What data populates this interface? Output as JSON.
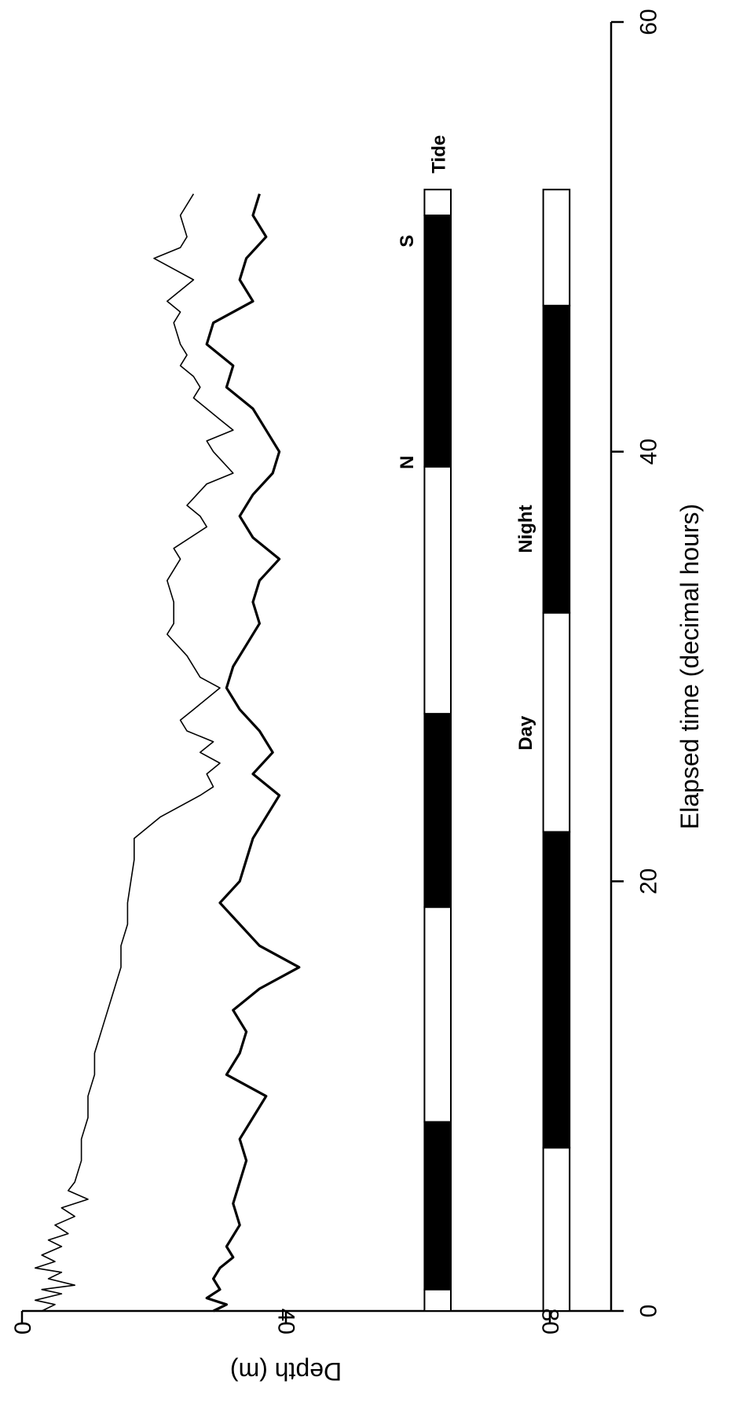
{
  "chart_data": {
    "type": "line",
    "xlabel": "Elapsed time (decimal hours)",
    "ylabel": "Depth (m)",
    "xlim": [
      0,
      60
    ],
    "ylim": [
      0,
      90
    ],
    "y_inverted": true,
    "orientation": "rotated-90-clockwise",
    "x_ticks": [
      "0",
      "20",
      "40",
      "60"
    ],
    "y_ticks": [
      "0",
      "40",
      "80"
    ],
    "series": [
      {
        "style": "thin",
        "points": [
          [
            0,
            3
          ],
          [
            0.3,
            5
          ],
          [
            0.5,
            2
          ],
          [
            0.8,
            6
          ],
          [
            1.0,
            3
          ],
          [
            1.2,
            8
          ],
          [
            1.5,
            4
          ],
          [
            1.8,
            6
          ],
          [
            2.0,
            2
          ],
          [
            2.3,
            5
          ],
          [
            2.6,
            3
          ],
          [
            3.0,
            6
          ],
          [
            3.3,
            4
          ],
          [
            3.6,
            7
          ],
          [
            4.0,
            5
          ],
          [
            4.4,
            8
          ],
          [
            4.8,
            6
          ],
          [
            5.2,
            10
          ],
          [
            5.6,
            7
          ],
          [
            6.0,
            8
          ],
          [
            7.0,
            9
          ],
          [
            8.0,
            9
          ],
          [
            9.0,
            10
          ],
          [
            10.0,
            10
          ],
          [
            11.0,
            11
          ],
          [
            12.0,
            11
          ],
          [
            13.0,
            12
          ],
          [
            14.0,
            13
          ],
          [
            15.0,
            14
          ],
          [
            16.0,
            15
          ],
          [
            17.0,
            15
          ],
          [
            18.0,
            16
          ],
          [
            19.0,
            16
          ],
          [
            20.0,
            16.5
          ],
          [
            21.0,
            17
          ],
          [
            22.0,
            17
          ],
          [
            23.0,
            21
          ],
          [
            24.0,
            27
          ],
          [
            24.4,
            29
          ],
          [
            25.0,
            28
          ],
          [
            25.5,
            30
          ],
          [
            26.0,
            27
          ],
          [
            26.5,
            29
          ],
          [
            27.0,
            25
          ],
          [
            27.5,
            24
          ],
          [
            28.0,
            26
          ],
          [
            29.0,
            30
          ],
          [
            29.5,
            27
          ],
          [
            30.5,
            25
          ],
          [
            31.5,
            22
          ],
          [
            32.0,
            23
          ],
          [
            33.0,
            23
          ],
          [
            34.0,
            22
          ],
          [
            35.0,
            24
          ],
          [
            35.5,
            23
          ],
          [
            36.5,
            28
          ],
          [
            37.0,
            27
          ],
          [
            37.5,
            25
          ],
          [
            38.5,
            28
          ],
          [
            39.0,
            32
          ],
          [
            40.0,
            29
          ],
          [
            40.5,
            28
          ],
          [
            41.0,
            32
          ],
          [
            41.5,
            30
          ],
          [
            42.0,
            28
          ],
          [
            42.5,
            26
          ],
          [
            43.0,
            27
          ],
          [
            43.5,
            26
          ],
          [
            44.0,
            24
          ],
          [
            44.5,
            25
          ],
          [
            45.0,
            24
          ],
          [
            46.0,
            23
          ],
          [
            46.5,
            24
          ],
          [
            47.0,
            22
          ],
          [
            48.0,
            26
          ],
          [
            48.5,
            23
          ],
          [
            49.0,
            20
          ],
          [
            49.5,
            24
          ],
          [
            50.0,
            25
          ],
          [
            51.0,
            24
          ],
          [
            52.0,
            26
          ]
        ]
      },
      {
        "style": "thick",
        "points": [
          [
            0,
            29
          ],
          [
            0.3,
            31
          ],
          [
            0.6,
            28
          ],
          [
            1.0,
            30
          ],
          [
            1.5,
            29
          ],
          [
            2.0,
            30
          ],
          [
            2.5,
            32
          ],
          [
            3.0,
            31
          ],
          [
            4.0,
            33
          ],
          [
            5.0,
            32
          ],
          [
            6.0,
            33
          ],
          [
            7.0,
            34
          ],
          [
            8.0,
            33
          ],
          [
            9.0,
            35
          ],
          [
            10.0,
            37
          ],
          [
            11.0,
            31
          ],
          [
            12.0,
            33
          ],
          [
            13.0,
            34
          ],
          [
            14.0,
            32
          ],
          [
            15.0,
            36
          ],
          [
            16.0,
            42
          ],
          [
            17.0,
            36
          ],
          [
            18.0,
            33
          ],
          [
            19.0,
            30
          ],
          [
            20.0,
            33
          ],
          [
            21.0,
            34
          ],
          [
            22.0,
            35
          ],
          [
            23.0,
            37
          ],
          [
            24.0,
            39
          ],
          [
            25.0,
            35
          ],
          [
            26.0,
            38
          ],
          [
            27.0,
            36
          ],
          [
            28.0,
            33
          ],
          [
            29.0,
            31
          ],
          [
            30.0,
            32
          ],
          [
            31.0,
            34
          ],
          [
            32.0,
            36
          ],
          [
            33.0,
            35
          ],
          [
            34.0,
            36
          ],
          [
            35.0,
            39
          ],
          [
            36.0,
            35
          ],
          [
            37.0,
            33
          ],
          [
            38.0,
            35
          ],
          [
            39.0,
            38
          ],
          [
            40.0,
            39
          ],
          [
            41.0,
            37
          ],
          [
            42.0,
            35
          ],
          [
            43.0,
            31
          ],
          [
            44.0,
            32
          ],
          [
            45.0,
            28
          ],
          [
            46.0,
            29
          ],
          [
            47.0,
            35
          ],
          [
            48.0,
            33
          ],
          [
            49.0,
            34
          ],
          [
            50.0,
            37
          ],
          [
            51.0,
            35
          ],
          [
            52.0,
            36
          ]
        ]
      }
    ],
    "bars": [
      {
        "name": "Tide",
        "y_from": 61,
        "y_to": 65,
        "segments": [
          {
            "from": 0,
            "to": 1,
            "color": "white"
          },
          {
            "from": 1,
            "to": 8.8,
            "color": "black"
          },
          {
            "from": 8.8,
            "to": 18.8,
            "color": "white"
          },
          {
            "from": 18.8,
            "to": 27.8,
            "color": "black"
          },
          {
            "from": 27.8,
            "to": 39.3,
            "color": "white"
          },
          {
            "from": 39.3,
            "to": 51,
            "color": "black"
          },
          {
            "from": 51,
            "to": 52.2,
            "color": "white"
          }
        ],
        "labels": [
          {
            "text": "N",
            "x": 39.5
          },
          {
            "text": "S",
            "x": 49.8
          }
        ]
      },
      {
        "name": "Day/Night",
        "y_from": 79,
        "y_to": 83,
        "segments": [
          {
            "from": 0,
            "to": 7.6,
            "color": "white"
          },
          {
            "from": 7.6,
            "to": 22.3,
            "color": "black"
          },
          {
            "from": 22.3,
            "to": 32.5,
            "color": "white"
          },
          {
            "from": 32.5,
            "to": 46.8,
            "color": "black"
          },
          {
            "from": 46.8,
            "to": 52.2,
            "color": "white"
          }
        ],
        "labels": [
          {
            "text": "Day",
            "x": 26.9
          },
          {
            "text": "Night",
            "x": 36.4
          }
        ]
      }
    ]
  }
}
